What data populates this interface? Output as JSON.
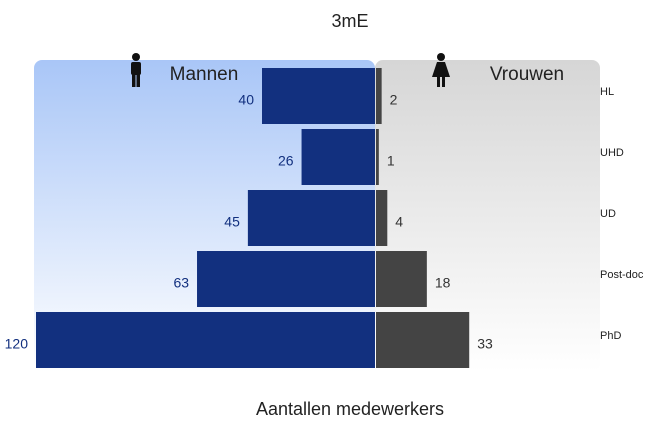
{
  "chart_data": {
    "type": "pyramid",
    "title": "3mE",
    "x_label": "Aantallen medewerkers",
    "categories": [
      "HL",
      "UHD",
      "UD",
      "Post-doc",
      "PhD"
    ],
    "series": [
      {
        "name": "Mannen",
        "color": "#12307f",
        "values": [
          40,
          26,
          45,
          63,
          120
        ]
      },
      {
        "name": "Vrouwen",
        "color": "#444444",
        "values": [
          2,
          1,
          4,
          18,
          33
        ]
      }
    ]
  }
}
